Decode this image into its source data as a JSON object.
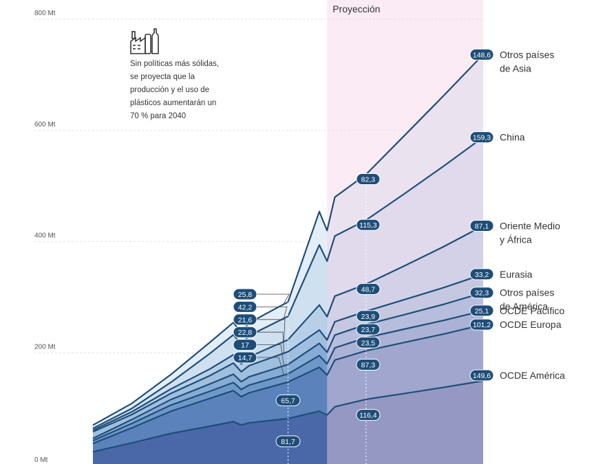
{
  "chart_data": {
    "type": "area",
    "stacked": true,
    "unit": "Mt",
    "ylim": [
      0,
      800
    ],
    "yticks": [
      {
        "value": 0,
        "label": "0 Mt"
      },
      {
        "value": 200,
        "label": "200 Mt"
      },
      {
        "value": 400,
        "label": "400 Mt"
      },
      {
        "value": 600,
        "label": "600 Mt"
      },
      {
        "value": 800,
        "label": "800 Mt"
      }
    ],
    "x": [
      1990,
      1995,
      2000,
      2005,
      2008,
      2009,
      2010,
      2015,
      2019,
      2020,
      2021,
      2025,
      2030,
      2035,
      2040
    ],
    "projection_label": "Proyección",
    "projection_start": 2020,
    "note": "Sin políticas más sólidas, se proyecta que la producción y el uso de plásticos aumentarán un 70 % para 2040",
    "series": [
      {
        "name": "OCDE América",
        "color": "#4a68a8",
        "values": [
          22,
          38,
          55,
          68,
          76,
          70,
          74,
          81.7,
          95,
          88,
          103,
          116.4,
          127,
          138,
          149.6
        ]
      },
      {
        "name": "OCDE Europa",
        "color": "#5b82ba",
        "values": [
          15,
          27,
          40,
          50,
          56,
          51,
          54,
          65.7,
          79,
          72,
          84,
          87.3,
          92,
          96,
          101.2
        ]
      },
      {
        "name": "OCDE Pacífico",
        "color": "#6f98c8",
        "values": [
          5,
          8,
          11,
          13,
          14.5,
          13,
          13.8,
          14.7,
          21,
          20,
          22,
          23.5,
          24,
          24.5,
          25.1
        ]
      },
      {
        "name": "Otros países de América",
        "color": "#86abd4",
        "values": [
          4,
          7,
          10,
          13,
          15,
          14,
          15,
          17,
          22,
          21,
          23,
          23.7,
          26,
          29,
          32.3
        ]
      },
      {
        "name": "Eurasia",
        "color": "#a0bfdf",
        "values": [
          12,
          9,
          11,
          15,
          20,
          18,
          20,
          22.8,
          24,
          22,
          24,
          23.9,
          27,
          30,
          33.2
        ]
      },
      {
        "name": "Oriente Medio y África",
        "color": "#b7d0e8",
        "values": [
          3,
          5,
          8,
          12,
          15,
          14,
          16,
          21.6,
          45,
          42,
          46,
          48.7,
          61,
          74,
          87.1
        ]
      },
      {
        "name": "China",
        "color": "#cfe0f0",
        "values": [
          3,
          6,
          12,
          28,
          36,
          35,
          38,
          42.2,
          108,
          100,
          108,
          115.3,
          130,
          145,
          159.3
        ]
      },
      {
        "name": "Otros países de Asia",
        "color": "#e4eef8",
        "values": [
          6,
          9,
          14,
          20,
          22,
          21,
          23,
          25.8,
          60,
          55,
          70,
          82.3,
          105,
          127,
          148.6
        ]
      }
    ],
    "badges_2015": [
      "81,7",
      "65,7",
      "14,7",
      "17",
      "22,8",
      "21,6",
      "42,2",
      "25,8"
    ],
    "badges_2025": [
      "116,4",
      "87,3",
      "23,5",
      "23,7",
      "23,9",
      "48,7",
      "115,3",
      "82,3"
    ],
    "badges_2040": [
      "149,6",
      "101,2",
      "25,1",
      "32,3",
      "33,2",
      "87,1",
      "159,3",
      "148,6"
    ],
    "legend_labels": [
      [
        "OCDE América"
      ],
      [
        "OCDE Europa"
      ],
      [
        "OCDE Pacífico"
      ],
      [
        "Otros países",
        "de América"
      ],
      [
        "Eurasia"
      ],
      [
        "Oriente Medio",
        "y África"
      ],
      [
        "China"
      ],
      [
        "Otros países",
        "de Asia"
      ]
    ],
    "colors": {
      "line": "#1e4d78",
      "badge": "#1e4d78",
      "projection_band": "#f3d3e6",
      "grid": "#d8d8d8"
    }
  }
}
